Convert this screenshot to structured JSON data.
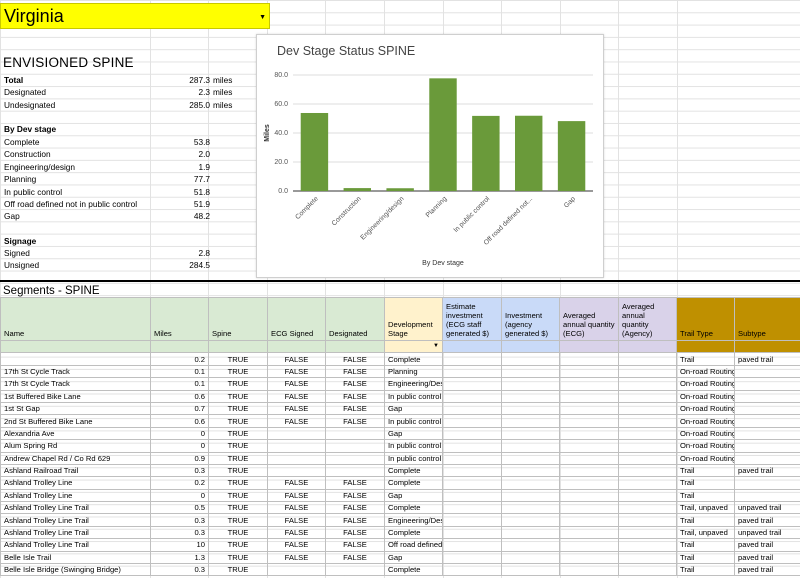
{
  "state_selector": {
    "value": "Virginia"
  },
  "summary": {
    "title": "ENVISIONED SPINE",
    "rows": [
      {
        "label": "Total",
        "value": "287.3",
        "unit": "miles",
        "bold": true
      },
      {
        "label": "Designated",
        "value": "2.3",
        "unit": "miles",
        "bold": false
      },
      {
        "label": "Undesignated",
        "value": "285.0",
        "unit": "miles",
        "bold": false
      }
    ],
    "dev_stage_heading": "By Dev stage",
    "dev_stage_rows": [
      {
        "label": "Complete",
        "value": "53.8"
      },
      {
        "label": "Construction",
        "value": "2.0"
      },
      {
        "label": "Engineering/design",
        "value": "1.9"
      },
      {
        "label": "Planning",
        "value": "77.7"
      },
      {
        "label": "In public control",
        "value": "51.8"
      },
      {
        "label": "Off road defined not in public control",
        "value": "51.9"
      },
      {
        "label": "Gap",
        "value": "48.2"
      }
    ],
    "signage_heading": "Signage",
    "signage_rows": [
      {
        "label": "Signed",
        "value": "2.8"
      },
      {
        "label": "Unsigned",
        "value": "284.5"
      }
    ]
  },
  "chart_data": {
    "type": "bar",
    "title": "Dev Stage Status SPINE",
    "xlabel": "By Dev stage",
    "ylabel": "Miles",
    "ylim": [
      0,
      80
    ],
    "yticks": [
      "0.0",
      "20.0",
      "40.0",
      "60.0",
      "80.0"
    ],
    "categories": [
      "Complete",
      "Construction",
      "Engineering/design",
      "Planning",
      "In public control",
      "Off road defined not...",
      "Gap"
    ],
    "values": [
      53.8,
      2.0,
      1.9,
      77.7,
      51.8,
      51.9,
      48.2
    ],
    "bar_color": "#6a9a3a",
    "grid": true,
    "legend": "none"
  },
  "segments": {
    "title": "Segments - SPINE",
    "headers": [
      "Name",
      "Miles",
      "Spine",
      "ECG Signed",
      "Designated",
      "Development Stage",
      "Estimate investment (ECG staff generated $)",
      "Investment (agency generated $)",
      "Averaged annual quantity (ECG)",
      "Averaged annual quantity (Agency)",
      "Trail Type",
      "Subtype"
    ],
    "rows": [
      [
        "",
        "0.2",
        "TRUE",
        "FALSE",
        "FALSE",
        "Complete",
        "",
        "",
        "",
        "",
        "Trail",
        "paved trail"
      ],
      [
        "17th St Cycle Track",
        "0.1",
        "TRUE",
        "FALSE",
        "FALSE",
        "Planning",
        "",
        "",
        "",
        "",
        "On-road Routing",
        ""
      ],
      [
        "17th St Cycle Track",
        "0.1",
        "TRUE",
        "FALSE",
        "FALSE",
        "Engineering/Design",
        "",
        "",
        "",
        "",
        "On-road Routing",
        ""
      ],
      [
        "1st Buffered Bike Lane",
        "0.6",
        "TRUE",
        "FALSE",
        "FALSE",
        "In public control",
        "",
        "",
        "",
        "",
        "On-road Routing",
        ""
      ],
      [
        "1st St Gap",
        "0.7",
        "TRUE",
        "FALSE",
        "FALSE",
        "Gap",
        "",
        "",
        "",
        "",
        "On-road Routing",
        ""
      ],
      [
        "2nd St Buffered Bike Lane",
        "0.6",
        "TRUE",
        "FALSE",
        "FALSE",
        "In public control",
        "",
        "",
        "",
        "",
        "On-road Routing",
        ""
      ],
      [
        "Alexandria Ave",
        "0",
        "TRUE",
        "",
        "",
        "Gap",
        "",
        "",
        "",
        "",
        "On-road Routing",
        ""
      ],
      [
        "Alum Spring Rd",
        "0",
        "TRUE",
        "",
        "",
        "In public control",
        "",
        "",
        "",
        "",
        "On-road Routing",
        ""
      ],
      [
        "Andrew Chapel Rd / Co Rd 629",
        "0.9",
        "TRUE",
        "",
        "",
        "In public control",
        "",
        "",
        "",
        "",
        "On-road Routing",
        ""
      ],
      [
        "Ashland Railroad Trail",
        "0.3",
        "TRUE",
        "",
        "",
        "Complete",
        "",
        "",
        "",
        "",
        "Trail",
        "paved trail"
      ],
      [
        "Ashland Trolley Line",
        "0.2",
        "TRUE",
        "FALSE",
        "FALSE",
        "Complete",
        "",
        "",
        "",
        "",
        "Trail",
        ""
      ],
      [
        "Ashland Trolley Line",
        "0",
        "TRUE",
        "FALSE",
        "FALSE",
        "Gap",
        "",
        "",
        "",
        "",
        "Trail",
        ""
      ],
      [
        "Ashland Trolley Line Trail",
        "0.5",
        "TRUE",
        "FALSE",
        "FALSE",
        "Complete",
        "",
        "",
        "",
        "",
        "Trail, unpaved",
        "unpaved trail"
      ],
      [
        "Ashland Trolley Line Trail",
        "0.3",
        "TRUE",
        "FALSE",
        "FALSE",
        "Engineering/Design",
        "",
        "",
        "",
        "",
        "Trail",
        "paved trail"
      ],
      [
        "Ashland Trolley Line Trail",
        "0.3",
        "TRUE",
        "FALSE",
        "FALSE",
        "Complete",
        "",
        "",
        "",
        "",
        "Trail, unpaved",
        "unpaved trail"
      ],
      [
        "Ashland Trolley Line Trail",
        "10",
        "TRUE",
        "FALSE",
        "FALSE",
        "Off road defined not in public control",
        "",
        "",
        "",
        "",
        "Trail",
        "paved trail"
      ],
      [
        "Belle Isle Trail",
        "1.3",
        "TRUE",
        "FALSE",
        "FALSE",
        "Gap",
        "",
        "",
        "",
        "",
        "Trail",
        "paved trail"
      ],
      [
        "Belle Isle Bridge (Swinging Bridge)",
        "0.3",
        "TRUE",
        "",
        "",
        "Complete",
        "",
        "",
        "",
        "",
        "Trail",
        "paved trail"
      ]
    ]
  }
}
